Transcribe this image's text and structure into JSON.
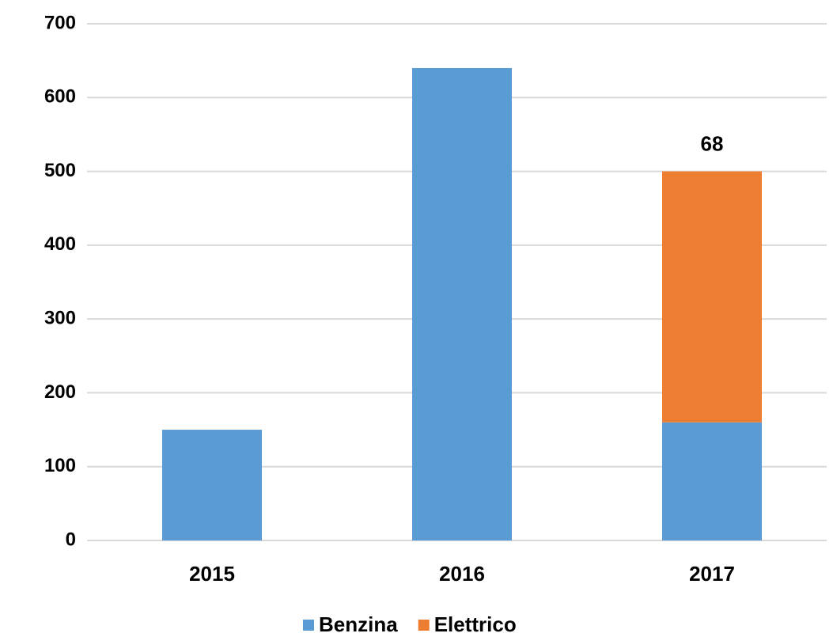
{
  "chart_data": {
    "type": "stacked_bar",
    "categories": [
      "2015",
      "2016",
      "2017"
    ],
    "series": [
      {
        "name": "Benzina",
        "color": "#5b9bd5",
        "values": [
          150,
          640,
          160
        ]
      },
      {
        "name": "Elettrico",
        "color": "#ed7d31",
        "values": [
          null,
          null,
          340
        ]
      }
    ],
    "annotations": [
      "68"
    ],
    "ylim": [
      0,
      700
    ],
    "yticks": [
      0,
      100,
      200,
      300,
      400,
      500,
      600,
      700
    ],
    "grid": true,
    "legend": "bottom"
  }
}
